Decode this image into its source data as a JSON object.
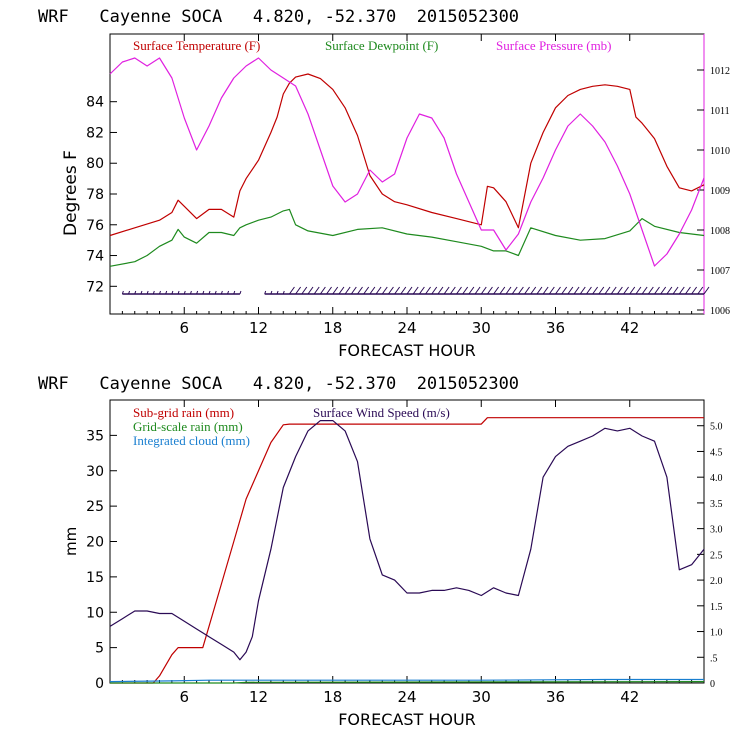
{
  "colors": {
    "temperature": "#c00000",
    "dewpoint": "#1e8a1e",
    "pressure": "#e020e0",
    "wind": "#2a0a55",
    "subgrid": "#c00000",
    "gridscale": "#1e8a1e",
    "cloud": "#1a7fd0",
    "axis": "#000000"
  },
  "chart_data": [
    {
      "type": "line",
      "title": "WRF   Cayenne SOCA   4.820, -52.370  2015052300",
      "xlabel": "FORECAST HOUR",
      "ylabel": "Degrees F",
      "y2label": "",
      "xlim": [
        0,
        48
      ],
      "ylim": [
        70.2,
        88.4
      ],
      "y2lim": [
        1005.9,
        1012.9
      ],
      "x_ticks": [
        6,
        12,
        18,
        24,
        30,
        36,
        42
      ],
      "x_tick_labels": [
        "6",
        "12",
        "18",
        "24",
        "30",
        "36",
        "42"
      ],
      "y_ticks": [
        72,
        74,
        76,
        78,
        80,
        82,
        84
      ],
      "y_tick_labels": [
        "72",
        "74",
        "76",
        "78",
        "80",
        "82",
        "84"
      ],
      "y2_ticks": [
        1006,
        1007,
        1008,
        1009,
        1010,
        1011,
        1012
      ],
      "y2_tick_labels": [
        "1006",
        "1007",
        "1008",
        "1009",
        "1010",
        "1011",
        "1012"
      ],
      "legend": [
        "Surface Temperature (F)",
        "Surface Dewpoint (F)",
        "Surface Pressure (mb)"
      ],
      "series": [
        {
          "name": "Surface Temperature (F)",
          "axis": "left",
          "x": [
            0,
            2,
            4,
            5,
            5.5,
            6,
            7,
            8,
            9,
            10,
            10.5,
            11,
            12,
            13,
            13.5,
            14,
            14.5,
            15,
            16,
            17,
            18,
            19,
            20,
            21,
            22,
            23,
            24,
            26,
            28,
            30,
            30.5,
            31,
            32,
            33,
            34,
            35,
            36,
            37,
            38,
            39,
            40,
            41,
            42,
            42.5,
            43,
            44,
            45,
            46,
            47,
            48
          ],
          "values": [
            75.3,
            75.8,
            76.3,
            76.8,
            77.6,
            77.2,
            76.4,
            77.0,
            77.0,
            76.5,
            78.2,
            79.0,
            80.2,
            82.0,
            83.0,
            84.5,
            85.2,
            85.6,
            85.8,
            85.5,
            84.8,
            83.6,
            81.8,
            79.2,
            78.0,
            77.5,
            77.3,
            76.8,
            76.4,
            76.0,
            78.5,
            78.4,
            77.5,
            75.8,
            80.0,
            82.0,
            83.6,
            84.4,
            84.8,
            85.0,
            85.1,
            85.0,
            84.8,
            83.0,
            82.6,
            81.6,
            79.8,
            78.4,
            78.2,
            78.6
          ]
        },
        {
          "name": "Surface Dewpoint (F)",
          "axis": "left",
          "x": [
            0,
            2,
            3,
            4,
            5,
            5.5,
            6,
            7,
            8,
            9,
            10,
            10.5,
            11,
            12,
            13,
            14,
            14.5,
            15,
            16,
            18,
            20,
            22,
            24,
            26,
            28,
            30,
            31,
            32,
            33,
            34,
            36,
            38,
            40,
            42,
            43,
            44,
            46,
            48
          ],
          "values": [
            73.3,
            73.6,
            74.0,
            74.6,
            75.0,
            75.7,
            75.2,
            74.8,
            75.5,
            75.5,
            75.3,
            75.8,
            76.0,
            76.3,
            76.5,
            76.9,
            77.0,
            76.0,
            75.6,
            75.3,
            75.7,
            75.8,
            75.4,
            75.2,
            74.9,
            74.6,
            74.3,
            74.3,
            74.0,
            75.8,
            75.3,
            75.0,
            75.1,
            75.6,
            76.4,
            75.9,
            75.5,
            75.3
          ]
        },
        {
          "name": "Surface Pressure (mb)",
          "axis": "right",
          "x": [
            0,
            1,
            2,
            3,
            4,
            5,
            6,
            7,
            8,
            9,
            10,
            11,
            12,
            13,
            14,
            15,
            16,
            17,
            18,
            19,
            20,
            21,
            22,
            23,
            24,
            25,
            26,
            27,
            28,
            29,
            30,
            31,
            32,
            33,
            34,
            35,
            36,
            37,
            38,
            39,
            40,
            41,
            42,
            43,
            44,
            45,
            46,
            47,
            48
          ],
          "values": [
            1011.9,
            1012.2,
            1012.3,
            1012.1,
            1012.3,
            1011.8,
            1010.8,
            1010.0,
            1010.6,
            1011.3,
            1011.8,
            1012.1,
            1012.3,
            1012.0,
            1011.8,
            1011.6,
            1010.9,
            1010.0,
            1009.1,
            1008.7,
            1008.9,
            1009.5,
            1009.2,
            1009.4,
            1010.3,
            1010.9,
            1010.8,
            1010.3,
            1009.4,
            1008.7,
            1008.0,
            1008.0,
            1007.5,
            1007.9,
            1008.7,
            1009.3,
            1010.0,
            1010.6,
            1010.9,
            1010.6,
            1010.2,
            1009.6,
            1008.9,
            1008.0,
            1007.1,
            1007.4,
            1007.9,
            1008.5,
            1009.3
          ]
        }
      ],
      "wind_barbs": {
        "x_start": 1,
        "x_end": 48,
        "y": 71.5,
        "gap": [
          10.5,
          12.5
        ]
      }
    },
    {
      "type": "line",
      "title": "WRF   Cayenne SOCA   4.820, -52.370  2015052300",
      "xlabel": "FORECAST HOUR",
      "ylabel": "mm",
      "xlim": [
        0,
        48
      ],
      "ylim": [
        0,
        40
      ],
      "y2lim": [
        0,
        5.5
      ],
      "x_ticks": [
        6,
        12,
        18,
        24,
        30,
        36,
        42
      ],
      "x_tick_labels": [
        "6",
        "12",
        "18",
        "24",
        "30",
        "36",
        "42"
      ],
      "y_ticks": [
        0,
        5,
        10,
        15,
        20,
        25,
        30,
        35
      ],
      "y_tick_labels": [
        "0",
        "5",
        "10",
        "15",
        "20",
        "25",
        "30",
        "35"
      ],
      "y2_ticks": [
        0,
        0.5,
        1.0,
        1.5,
        2.0,
        2.5,
        3.0,
        3.5,
        4.0,
        4.5,
        5.0
      ],
      "y2_tick_labels": [
        "0",
        ".5",
        "1.0",
        "1.5",
        "2.0",
        "2.5",
        "3.0",
        "3.5",
        "4.0",
        "4.5",
        "5.0"
      ],
      "legend": [
        "Sub-grid rain (mm)",
        "Grid-scale rain (mm)",
        "Integrated cloud (mm)",
        "Surface Wind Speed (m/s)"
      ],
      "series": [
        {
          "name": "Sub-grid rain (mm)",
          "axis": "left",
          "x": [
            0,
            3.5,
            4,
            5,
            5.5,
            7.5,
            8,
            9,
            10,
            11,
            12,
            13,
            14,
            14.5,
            15,
            18,
            30,
            30.5,
            40,
            48
          ],
          "values": [
            0,
            0,
            1,
            4,
            5,
            5,
            8,
            14,
            20,
            26,
            30,
            34,
            36.5,
            36.6,
            36.6,
            36.6,
            36.6,
            37.5,
            37.5,
            37.5
          ]
        },
        {
          "name": "Grid-scale rain (mm)",
          "axis": "left",
          "x": [
            0,
            10,
            11,
            48
          ],
          "values": [
            0,
            0,
            0.1,
            0.2
          ]
        },
        {
          "name": "Integrated cloud (mm)",
          "axis": "left",
          "x": [
            0,
            5,
            8,
            12,
            20,
            30,
            40,
            48
          ],
          "values": [
            0.2,
            0.3,
            0.4,
            0.4,
            0.4,
            0.4,
            0.5,
            0.5
          ]
        },
        {
          "name": "Surface Wind Speed (m/s)",
          "axis": "right",
          "x": [
            0,
            1,
            2,
            3,
            4,
            5,
            6,
            7,
            8,
            9,
            10,
            10.5,
            11,
            11.5,
            12,
            13,
            14,
            15,
            16,
            17,
            18,
            19,
            20,
            21,
            22,
            23,
            24,
            25,
            26,
            27,
            28,
            29,
            30,
            31,
            32,
            33,
            34,
            35,
            36,
            37,
            38,
            39,
            40,
            41,
            42,
            43,
            44,
            45,
            46,
            47,
            48
          ],
          "values": [
            1.1,
            1.25,
            1.4,
            1.4,
            1.35,
            1.35,
            1.2,
            1.05,
            0.9,
            0.75,
            0.6,
            0.45,
            0.6,
            0.9,
            1.6,
            2.6,
            3.8,
            4.4,
            4.9,
            5.1,
            5.1,
            4.9,
            4.3,
            2.8,
            2.1,
            2.0,
            1.75,
            1.75,
            1.8,
            1.8,
            1.85,
            1.8,
            1.7,
            1.85,
            1.75,
            1.7,
            2.6,
            4.0,
            4.4,
            4.6,
            4.7,
            4.8,
            4.95,
            4.9,
            4.95,
            4.8,
            4.7,
            4.0,
            2.2,
            2.3,
            2.6
          ]
        }
      ]
    }
  ]
}
